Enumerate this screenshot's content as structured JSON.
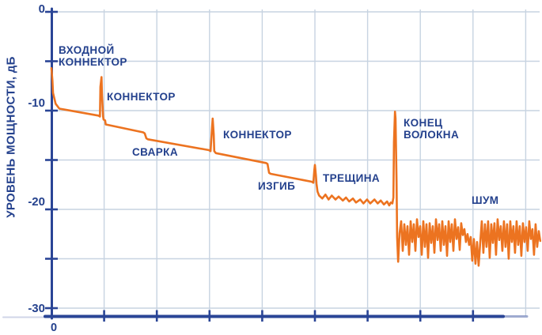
{
  "figure": {
    "colors": {
      "trace": "#EC7320",
      "axis": "#2A4596",
      "text": "#24418D",
      "grid": "#C7D3E1"
    }
  },
  "chart_data": {
    "type": "line",
    "title": "",
    "description": "OTDR reflectogram: optical power level (dB) versus distance along a fiber, with reflective and loss events",
    "ylabel": "УРОВЕНЬ МОЩНОСТИ, дБ",
    "xlabel": "",
    "x_origin_label": "0",
    "grid": true,
    "legend": false,
    "ylim": [
      -31,
      0.5
    ],
    "xlim": [
      0,
      9.3
    ],
    "y_ticks_labeled": [
      0,
      -10,
      -20,
      -30
    ],
    "y_tick_labels": [
      "0",
      "-10",
      "-20",
      "-30"
    ],
    "y_tick_minor_step": 5,
    "x_grid_divisions": 9,
    "x_axis_ticks_u": [
      1,
      2,
      3,
      4,
      5,
      6,
      7,
      8
    ],
    "annotations": [
      {
        "id": "input-connector",
        "lines": [
          "ВХОДНОЙ",
          "КОННЕКТОР"
        ],
        "u": 0.135,
        "db": -3.28
      },
      {
        "id": "connector-2",
        "lines": [
          "КОННЕКТОР"
        ],
        "u": 1.051,
        "db": -8.0
      },
      {
        "id": "splice",
        "lines": [
          "СВАРКА"
        ],
        "u": 1.532,
        "db": -13.6
      },
      {
        "id": "connector-3",
        "lines": [
          "КОННЕКТОР"
        ],
        "u": 3.258,
        "db": -11.84
      },
      {
        "id": "bend",
        "lines": [
          "ИЗГИБ"
        ],
        "u": 3.919,
        "db": -17.04
      },
      {
        "id": "crack",
        "lines": [
          "ТРЕЩИНА"
        ],
        "u": 5.15,
        "db": -16.24
      },
      {
        "id": "fiber-end",
        "lines": [
          "КОНЕЦ",
          "ВОЛОКНА"
        ],
        "u": 6.682,
        "db": -10.64
      },
      {
        "id": "noise",
        "lines": [
          "ШУМ"
        ],
        "u": 7.973,
        "db": -18.48
      }
    ],
    "events_summary": [
      {
        "label": "ВХОДНОЙ КОННЕКТОР",
        "u": 0.0,
        "type": "reflective",
        "peak_db": -5.7,
        "level_after_db": -9.9
      },
      {
        "label": "КОННЕКТОР",
        "u": 0.95,
        "type": "reflective",
        "peak_db": -6.6,
        "level_after_db": -11.4
      },
      {
        "label": "СВАРКА",
        "u": 1.8,
        "type": "loss-step",
        "loss_db": 0.7
      },
      {
        "label": "КОННЕКТОР",
        "u": 3.06,
        "type": "reflective",
        "peak_db": -10.8,
        "level_after_db": -14.3
      },
      {
        "label": "ИЗГИБ",
        "u": 4.13,
        "type": "loss-step",
        "loss_db": 1.0
      },
      {
        "label": "ТРЕЩИНА",
        "u": 5.0,
        "type": "reflective",
        "peak_db": -15.5,
        "level_after_db": -18.6
      },
      {
        "label": "КОНЕЦ ВОЛОКНА",
        "u": 6.52,
        "type": "reflective",
        "peak_db": -10.1
      },
      {
        "label": "ШУМ",
        "u": 6.6,
        "type": "noise-floor",
        "mean_db": -23,
        "range_db": [
          -21,
          -25.7
        ]
      }
    ],
    "trace": [
      [
        0.0,
        -5.7
      ],
      [
        0.02,
        -7.0
      ],
      [
        0.03,
        -8.2
      ],
      [
        0.08,
        -9.3
      ],
      [
        0.15,
        -9.8
      ],
      [
        0.26,
        -9.9
      ],
      [
        0.89,
        -10.5
      ],
      [
        0.92,
        -10.6
      ],
      [
        0.93,
        -7.6
      ],
      [
        0.95,
        -6.6
      ],
      [
        0.96,
        -8.4
      ],
      [
        0.98,
        -10.6
      ],
      [
        0.99,
        -10.9
      ],
      [
        1.02,
        -11.0
      ],
      [
        1.03,
        -11.4
      ],
      [
        1.74,
        -12.2
      ],
      [
        1.77,
        -12.3
      ],
      [
        1.8,
        -12.8
      ],
      [
        1.83,
        -12.9
      ],
      [
        2.99,
        -14.0
      ],
      [
        3.02,
        -14.1
      ],
      [
        3.05,
        -11.6
      ],
      [
        3.06,
        -10.8
      ],
      [
        3.08,
        -12.4
      ],
      [
        3.09,
        -14.1
      ],
      [
        3.12,
        -14.3
      ],
      [
        4.07,
        -15.3
      ],
      [
        4.1,
        -15.4
      ],
      [
        4.13,
        -16.3
      ],
      [
        4.16,
        -16.4
      ],
      [
        4.94,
        -17.2
      ],
      [
        4.97,
        -17.3
      ],
      [
        4.99,
        -16.0
      ],
      [
        5.0,
        -15.5
      ],
      [
        5.02,
        -16.6
      ],
      [
        5.03,
        -17.4
      ],
      [
        5.05,
        -18.2
      ],
      [
        5.08,
        -18.6
      ],
      [
        5.14,
        -18.9
      ],
      [
        5.2,
        -18.5
      ],
      [
        5.26,
        -19.0
      ],
      [
        5.32,
        -18.6
      ],
      [
        5.39,
        -19.0
      ],
      [
        5.45,
        -18.7
      ],
      [
        5.53,
        -19.1
      ],
      [
        5.59,
        -18.8
      ],
      [
        5.65,
        -19.2
      ],
      [
        5.72,
        -18.9
      ],
      [
        5.78,
        -19.3
      ],
      [
        5.86,
        -19.0
      ],
      [
        5.92,
        -19.4
      ],
      [
        5.99,
        -19.0
      ],
      [
        6.05,
        -19.4
      ],
      [
        6.13,
        -19.0
      ],
      [
        6.19,
        -19.4
      ],
      [
        6.25,
        -19.1
      ],
      [
        6.31,
        -19.5
      ],
      [
        6.37,
        -19.2
      ],
      [
        6.41,
        -19.6
      ],
      [
        6.44,
        -19.3
      ],
      [
        6.47,
        -19.4
      ],
      [
        6.49,
        -18.8
      ],
      [
        6.5,
        -13.2
      ],
      [
        6.52,
        -10.1
      ],
      [
        6.53,
        -10.8
      ],
      [
        6.55,
        -17.2
      ],
      [
        6.56,
        -22.8
      ],
      [
        6.58,
        -25.3
      ]
    ],
    "noise": {
      "u0": 6.607,
      "du": 0.03,
      "db": [
        -22.4,
        -21.2,
        -24.2,
        -21.5,
        -23.6,
        -21.7,
        -24.6,
        -21.2,
        -23.3,
        -21.5,
        -24.2,
        -21.0,
        -22.8,
        -21.7,
        -24.6,
        -21.2,
        -23.8,
        -21.5,
        -24.9,
        -21.4,
        -23.4,
        -21.7,
        -24.4,
        -21.0,
        -23.1,
        -21.5,
        -24.2,
        -21.2,
        -23.6,
        -21.7,
        -24.7,
        -21.2,
        -23.3,
        -21.5,
        -24.2,
        -21.0,
        -23.0,
        -21.8,
        -24.1,
        -21.4,
        -22.6,
        -22.0,
        -23.3,
        -22.5,
        -23.6,
        -22.8,
        -25.2,
        -23.0,
        -25.5,
        -23.3,
        -25.7,
        -23.4,
        -21.2,
        -24.4,
        -21.5,
        -23.8,
        -21.2,
        -24.9,
        -21.5,
        -23.4,
        -21.4,
        -24.6,
        -21.0,
        -23.1,
        -21.7,
        -24.2,
        -21.2,
        -23.8,
        -21.5,
        -25.0,
        -21.2,
        -23.3,
        -21.7,
        -24.4,
        -21.2,
        -23.6,
        -21.7,
        -24.7,
        -21.4,
        -23.3,
        -21.8,
        -24.2,
        -21.2,
        -23.0,
        -22.0,
        -24.6,
        -21.5,
        -23.8,
        -22.2,
        -23.2
      ]
    }
  }
}
